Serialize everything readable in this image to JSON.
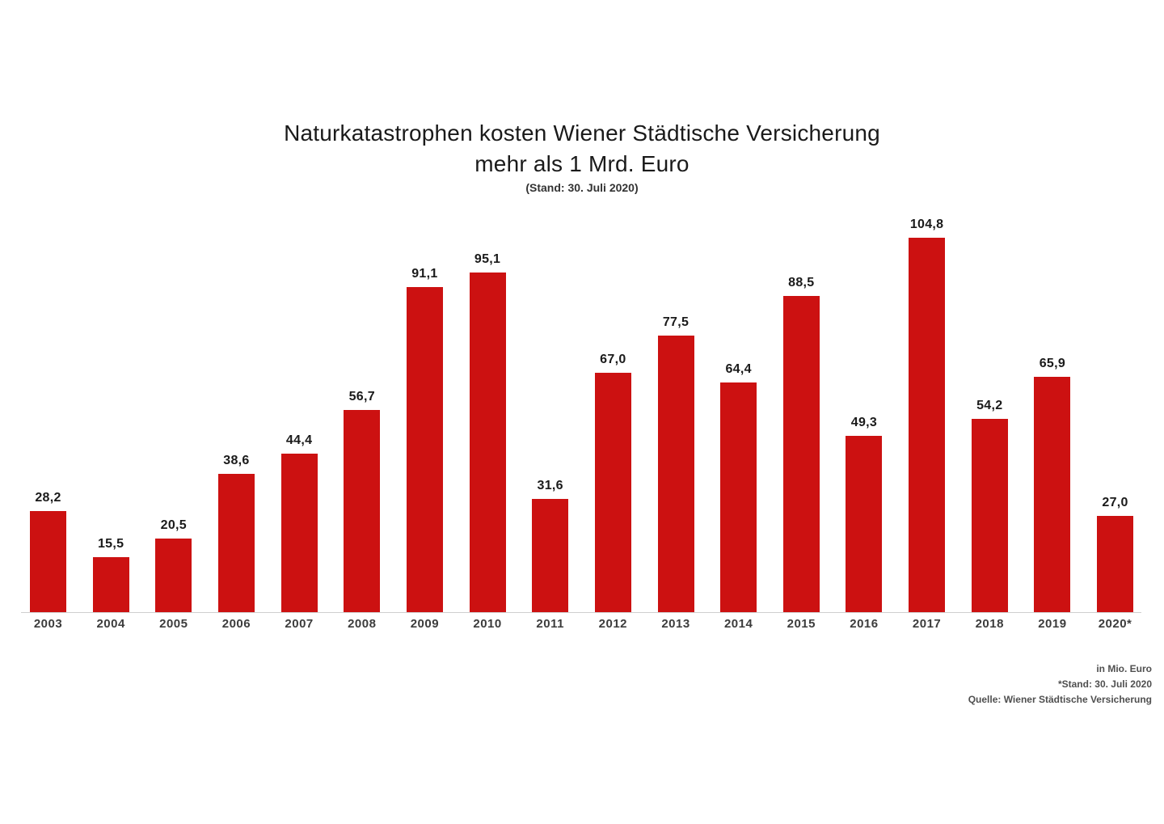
{
  "title": {
    "line1": "Naturkatastrophen kosten Wiener Städtische Versicherung",
    "line2": "mehr als 1 Mrd. Euro",
    "subtitle": "(Stand: 30. Juli 2020)"
  },
  "footer": {
    "unit_note": "in Mio. Euro",
    "stand_note": "*Stand: 30. Juli 2020",
    "source_note": "Quelle: Wiener Städtische Versicherung"
  },
  "colors": {
    "bar": "#CC1111",
    "axis_line": "#CFCFCF",
    "value_label": "#1A1A1A",
    "year_label": "#3C3C3C",
    "background": "#FFFFFF"
  },
  "chart_data": {
    "type": "bar",
    "title": "Naturkatastrophen kosten Wiener Städtische Versicherung mehr als 1 Mrd. Euro",
    "subtitle": "(Stand: 30. Juli 2020)",
    "unit": "in Mio. Euro",
    "source": "Quelle: Wiener Städtische Versicherung",
    "categories": [
      "2003",
      "2004",
      "2005",
      "2006",
      "2007",
      "2008",
      "2009",
      "2010",
      "2011",
      "2012",
      "2013",
      "2014",
      "2015",
      "2016",
      "2017",
      "2018",
      "2019",
      "2020*"
    ],
    "values": [
      28.2,
      15.5,
      20.5,
      38.6,
      44.4,
      56.7,
      91.1,
      95.1,
      31.6,
      67.0,
      77.5,
      64.4,
      88.5,
      49.3,
      104.8,
      54.2,
      65.9,
      27.0
    ],
    "value_labels": [
      "28,2",
      "15,5",
      "20,5",
      "38,6",
      "44,4",
      "56,7",
      "91,1",
      "95,1",
      "31,6",
      "67,0",
      "77,5",
      "64,4",
      "88,5",
      "49,3",
      "104,8",
      "54,2",
      "65,9",
      "27,0"
    ],
    "xlabel": "",
    "ylabel": "in Mio. Euro",
    "ylim": [
      0,
      110
    ],
    "grid": false,
    "legend": "none",
    "bar_color": "#CC1111"
  }
}
